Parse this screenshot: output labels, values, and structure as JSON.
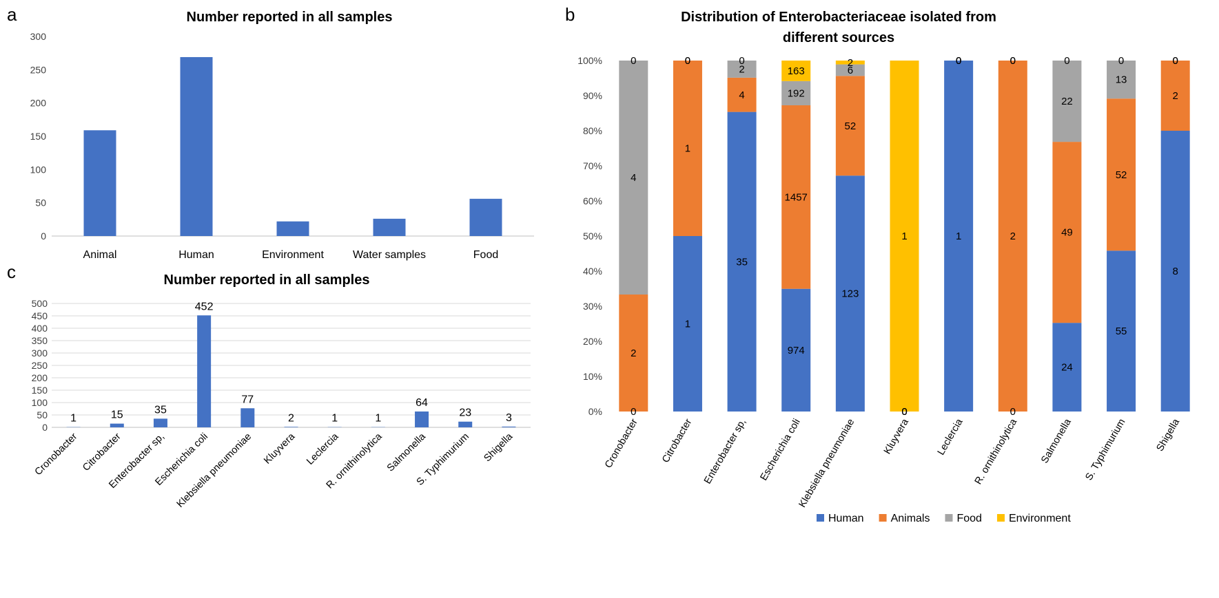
{
  "panels": {
    "a": "a",
    "b": "b",
    "c": "c"
  },
  "chart_data": [
    {
      "id": "a",
      "type": "bar",
      "title": "Number reported in all samples",
      "categories": [
        "Animal",
        "Human",
        "Environment",
        "Water samples",
        "Food"
      ],
      "values": [
        159,
        269,
        22,
        26,
        56
      ],
      "ylim": [
        0,
        300
      ],
      "yticks": [
        0,
        50,
        100,
        150,
        200,
        250,
        300
      ],
      "color": "#4472c4",
      "grid": false,
      "legend": "none"
    },
    {
      "id": "b",
      "type": "bar",
      "stacked": "percent",
      "title": "Distribution of Enterobacteriaceae isolated from different sources",
      "title_lines": [
        "Distribution of Enterobacteriaceae isolated from",
        "different sources"
      ],
      "categories": [
        "Cronobacter",
        "Citrobacter",
        "Enterobacter sp,",
        "Escherichia coli",
        "Klebsiella pneumoniae",
        "Kluyvera",
        "Leclercia",
        "R. ornithinolytica",
        "Salmonella",
        "S. Typhimurium",
        "Shigella"
      ],
      "series": [
        {
          "name": "Human",
          "color": "#4472c4",
          "values": [
            0,
            1,
            35,
            974,
            123,
            0,
            1,
            0,
            24,
            55,
            8
          ]
        },
        {
          "name": "Animals",
          "color": "#ed7d31",
          "values": [
            2,
            1,
            4,
            1457,
            52,
            0,
            0,
            2,
            49,
            52,
            2
          ]
        },
        {
          "name": "Food",
          "color": "#a5a5a5",
          "values": [
            4,
            0,
            2,
            192,
            6,
            0,
            0,
            0,
            22,
            13,
            0
          ]
        },
        {
          "name": "Environment",
          "color": "#ffc000",
          "values": [
            0,
            0,
            0,
            163,
            2,
            1,
            0,
            0,
            0,
            0,
            0
          ]
        }
      ],
      "yticks": [
        "0%",
        "10%",
        "20%",
        "30%",
        "40%",
        "50%",
        "60%",
        "70%",
        "80%",
        "90%",
        "100%"
      ],
      "ylim": [
        0,
        100
      ],
      "grid": false,
      "legend": "bottom"
    },
    {
      "id": "c",
      "type": "bar",
      "title": "Number reported in all samples",
      "categories": [
        "Cronobacter",
        "Citrobacter",
        "Enterobacter sp,",
        "Escherichia coli",
        "Klebsiella pneumoniae",
        "Kluyvera",
        "Leclercia",
        "R. ornithinolytica",
        "Salmonella",
        "S. Typhimurium",
        "Shigella"
      ],
      "values": [
        1,
        15,
        35,
        452,
        77,
        2,
        1,
        1,
        64,
        23,
        3
      ],
      "ylim": [
        0,
        500
      ],
      "yticks": [
        0,
        50,
        100,
        150,
        200,
        250,
        300,
        350,
        400,
        450,
        500
      ],
      "color": "#4472c4",
      "grid": true,
      "legend": "none"
    }
  ]
}
